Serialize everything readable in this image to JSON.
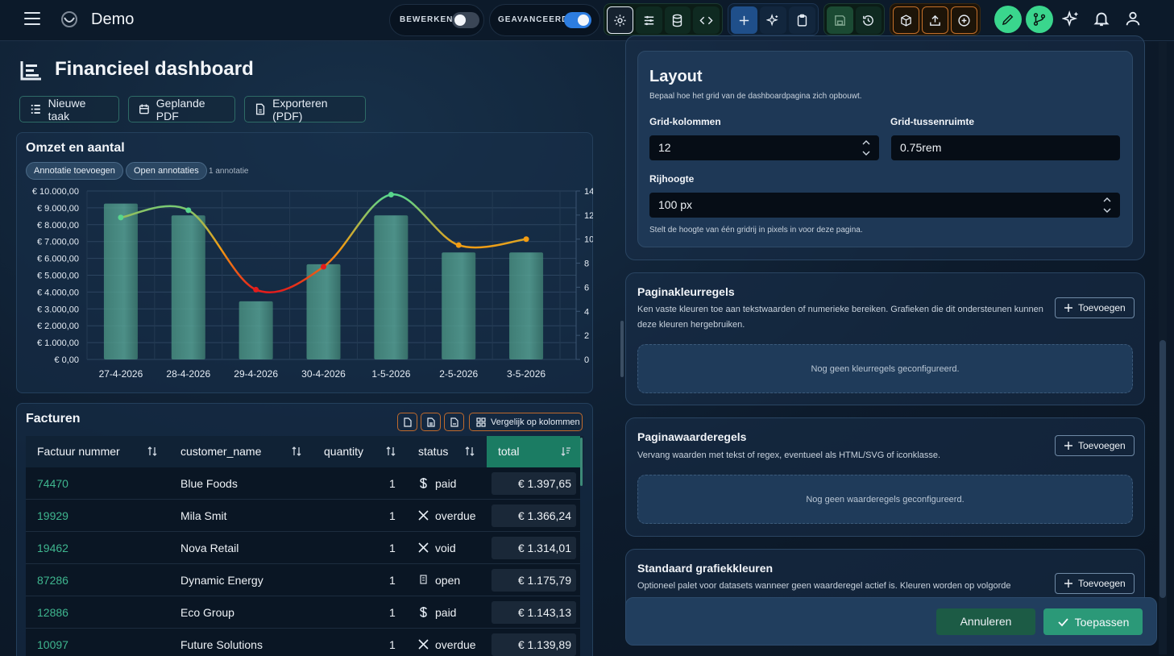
{
  "app": {
    "title": "Demo"
  },
  "toolbar": {
    "edit_toggle_label": "BEWERKEN",
    "advanced_toggle_label": "GEAVANCEERD",
    "edit_on": false,
    "advanced_on": true
  },
  "page": {
    "title": "Financieel dashboard",
    "actions": [
      "Nieuwe taak",
      "Geplande PDF",
      "Exporteren (PDF)"
    ]
  },
  "chart_card": {
    "title": "Omzet en aantal",
    "add_annotation": "Annotatie toevoegen",
    "open_annotations": "Open annotaties",
    "annotation_count": "1 annotatie"
  },
  "chart_data": {
    "type": "bar",
    "categories": [
      "27-4-2026",
      "28-4-2026",
      "29-4-2026",
      "30-4-2026",
      "1-5-2026",
      "2-5-2026",
      "3-5-2026"
    ],
    "series": [
      {
        "type": "bar",
        "axis": "left",
        "values": [
          9250,
          8550,
          3450,
          5650,
          8550,
          6350,
          6350
        ]
      },
      {
        "type": "line",
        "axis": "right",
        "values": [
          11.8,
          12.4,
          5.8,
          7.7,
          13.7,
          9.5,
          10
        ]
      }
    ],
    "y_left_ticks": [
      "€ 10.000,00",
      "€ 9.000,00",
      "€ 8.000,00",
      "€ 7.000,00",
      "€ 6.000,00",
      "€ 5.000,00",
      "€ 4.000,00",
      "€ 3.000,00",
      "€ 2.000,00",
      "€ 1.000,00",
      "€ 0,00"
    ],
    "y_right_ticks": [
      "14",
      "12",
      "10",
      "8",
      "6",
      "4",
      "2",
      "0"
    ],
    "ylim_left": [
      0,
      10000
    ],
    "ylim_right": [
      0,
      14
    ],
    "grid": true,
    "colors": {
      "bar": "#4f9a8a",
      "line_high": "#58d68d",
      "line_mid": "#f39c12",
      "line_low": "#e31c1c"
    }
  },
  "invoices": {
    "title": "Facturen",
    "compare_button": "Vergelijk op kolommen",
    "columns": [
      "Factuur nummer",
      "customer_name",
      "quantity",
      "status",
      "total"
    ],
    "rows": [
      {
        "number": "74470",
        "customer": "Blue Foods",
        "quantity": "1",
        "status": "paid",
        "status_icon": "dollar-icon",
        "total": "€ 1.397,65"
      },
      {
        "number": "19929",
        "customer": "Mila Smit",
        "quantity": "1",
        "status": "overdue",
        "status_icon": "x-icon",
        "total": "€ 1.366,24"
      },
      {
        "number": "19462",
        "customer": "Nova Retail",
        "quantity": "1",
        "status": "void",
        "status_icon": "x-icon",
        "total": "€ 1.314,01"
      },
      {
        "number": "87286",
        "customer": "Dynamic Energy",
        "quantity": "1",
        "status": "open",
        "status_icon": "placeholder-icon",
        "total": "€ 1.175,79"
      },
      {
        "number": "12886",
        "customer": "Eco Group",
        "quantity": "1",
        "status": "paid",
        "status_icon": "dollar-icon",
        "total": "€ 1.143,13"
      },
      {
        "number": "10097",
        "customer": "Future Solutions",
        "quantity": "1",
        "status": "overdue",
        "status_icon": "x-icon",
        "total": "€ 1.139,89"
      }
    ]
  },
  "layout_panel": {
    "title": "Layout",
    "description": "Bepaal hoe het grid van de dashboardpagina zich opbouwt.",
    "grid_columns_label": "Grid-kolommen",
    "grid_columns_value": "12",
    "grid_gap_label": "Grid-tussenruimte",
    "grid_gap_value": "0.75rem",
    "row_height_label": "Rijhoogte",
    "row_height_value": "100 px",
    "row_height_help": "Stelt de hoogte van één gridrij in pixels in voor deze pagina."
  },
  "color_rules": {
    "title": "Paginakleurregels",
    "description": "Ken vaste kleuren toe aan tekstwaarden of numerieke bereiken. Grafieken die dit ondersteunen kunnen deze kleuren hergebruiken.",
    "add_label": "Toevoegen",
    "empty": "Nog geen kleurregels geconfigureerd."
  },
  "value_rules": {
    "title": "Paginawaarderegels",
    "description": "Vervang waarden met tekst of regex, eventueel als HTML/SVG of iconklasse.",
    "add_label": "Toevoegen",
    "empty": "Nog geen waarderegels geconfigureerd."
  },
  "chart_colors": {
    "title": "Standaard grafiekkleuren",
    "description": "Optioneel palet voor datasets wanneer geen waarderegel actief is. Kleuren worden op volgorde",
    "add_label": "Toevoegen"
  },
  "footer": {
    "cancel": "Annuleren",
    "apply": "Toepassen"
  }
}
